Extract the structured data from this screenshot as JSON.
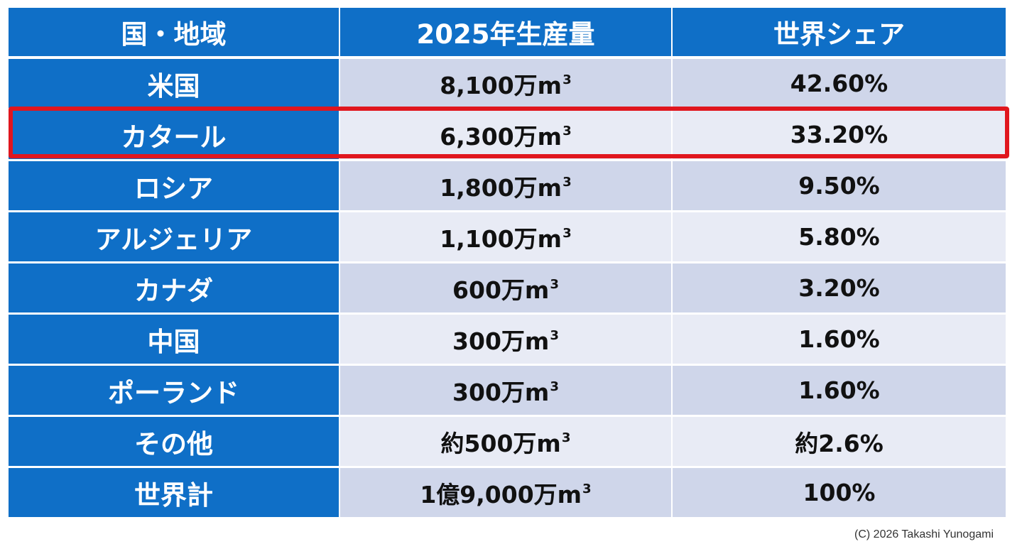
{
  "table": {
    "headers": [
      "国・地域",
      "2025年生産量",
      "世界シェア"
    ],
    "rows": [
      {
        "region": "米国",
        "production": "8,100万m",
        "production_sup": "3",
        "share": "42.60%"
      },
      {
        "region": "カタール",
        "production": "6,300万m",
        "production_sup": "3",
        "share": "33.20%",
        "highlighted": true
      },
      {
        "region": "ロシア",
        "production": "1,800万m",
        "production_sup": "3",
        "share": "9.50%"
      },
      {
        "region": "アルジェリア",
        "production": "1,100万m",
        "production_sup": "3",
        "share": "5.80%"
      },
      {
        "region": "カナダ",
        "production": "600万m",
        "production_sup": "3",
        "share": "3.20%"
      },
      {
        "region": "中国",
        "production": "300万m",
        "production_sup": "3",
        "share": "1.60%"
      },
      {
        "region": "ポーランド",
        "production": "300万m",
        "production_sup": "3",
        "share": "1.60%"
      },
      {
        "region": "その他",
        "production": "約500万m",
        "production_sup": "3",
        "share": "約2.6%"
      },
      {
        "region": "世界計",
        "production": "1億9,000万m",
        "production_sup": "3",
        "share": "100%"
      }
    ]
  },
  "colors": {
    "header_blue": "#0f6fc7",
    "row_odd": "#cfd6ea",
    "row_even": "#e8ebf5",
    "highlight_red": "#e0161e"
  },
  "copyright": "(C) 2026 Takashi Yunogami"
}
